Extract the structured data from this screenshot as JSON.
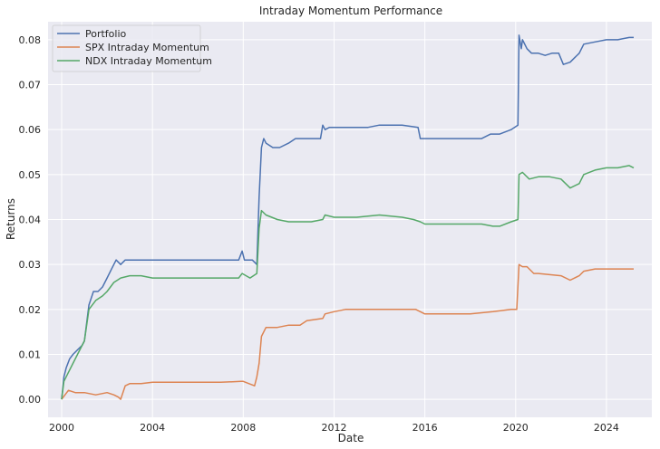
{
  "chart_data": {
    "type": "line",
    "title": "Intraday Momentum Performance",
    "xlabel": "Date",
    "ylabel": "Returns",
    "xlim": [
      1999.4,
      2026.0
    ],
    "ylim": [
      -0.004,
      0.084
    ],
    "x_ticks": [
      2000,
      2004,
      2008,
      2012,
      2016,
      2020,
      2024
    ],
    "x_tick_labels": [
      "2000",
      "2004",
      "2008",
      "2012",
      "2016",
      "2020",
      "2024"
    ],
    "y_ticks": [
      0.0,
      0.01,
      0.02,
      0.03,
      0.04,
      0.05,
      0.06,
      0.07,
      0.08
    ],
    "y_tick_labels": [
      "0.00",
      "0.01",
      "0.02",
      "0.03",
      "0.04",
      "0.05",
      "0.06",
      "0.07",
      "0.08"
    ],
    "grid": true,
    "legend_position": "top-left",
    "series": [
      {
        "name": "Portfolio",
        "color": "#4c72b0",
        "x": [
          2000.0,
          2000.1,
          2000.2,
          2000.35,
          2000.5,
          2000.7,
          2000.9,
          2001.0,
          2001.2,
          2001.4,
          2001.6,
          2001.8,
          2002.0,
          2002.2,
          2002.4,
          2002.6,
          2002.8,
          2003.0,
          2003.3,
          2003.6,
          2004.0,
          2005.0,
          2006.0,
          2007.0,
          2007.8,
          2007.95,
          2008.05,
          2008.4,
          2008.6,
          2008.7,
          2008.8,
          2008.9,
          2009.0,
          2009.3,
          2009.6,
          2010.0,
          2010.3,
          2010.6,
          2011.0,
          2011.4,
          2011.5,
          2011.6,
          2011.8,
          2012.0,
          2012.5,
          2013.0,
          2013.5,
          2014.0,
          2015.0,
          2015.7,
          2015.8,
          2016.0,
          2016.5,
          2017.0,
          2018.0,
          2018.5,
          2018.9,
          2019.3,
          2019.8,
          2020.1,
          2020.15,
          2020.25,
          2020.3,
          2020.5,
          2020.7,
          2021.0,
          2021.3,
          2021.6,
          2021.9,
          2022.1,
          2022.4,
          2022.6,
          2022.8,
          2023.0,
          2023.5,
          2024.0,
          2024.5,
          2025.0,
          2025.2
        ],
        "values": [
          0.0,
          0.005,
          0.007,
          0.009,
          0.01,
          0.011,
          0.012,
          0.013,
          0.021,
          0.024,
          0.024,
          0.025,
          0.027,
          0.029,
          0.031,
          0.03,
          0.031,
          0.031,
          0.031,
          0.031,
          0.031,
          0.031,
          0.031,
          0.031,
          0.031,
          0.033,
          0.031,
          0.031,
          0.03,
          0.045,
          0.056,
          0.058,
          0.057,
          0.056,
          0.056,
          0.057,
          0.058,
          0.058,
          0.058,
          0.058,
          0.061,
          0.06,
          0.0605,
          0.0605,
          0.0605,
          0.0605,
          0.0605,
          0.061,
          0.061,
          0.0605,
          0.058,
          0.058,
          0.058,
          0.058,
          0.058,
          0.058,
          0.059,
          0.059,
          0.06,
          0.061,
          0.081,
          0.078,
          0.08,
          0.078,
          0.077,
          0.077,
          0.0765,
          0.077,
          0.077,
          0.0745,
          0.075,
          0.076,
          0.077,
          0.079,
          0.0795,
          0.08,
          0.08,
          0.0805,
          0.0805
        ]
      },
      {
        "name": "SPX Intraday Momentum",
        "color": "#dd8452",
        "x": [
          2000.0,
          2000.3,
          2000.6,
          2001.0,
          2001.5,
          2002.0,
          2002.3,
          2002.5,
          2002.6,
          2002.8,
          2003.0,
          2003.5,
          2004.0,
          2005.0,
          2006.0,
          2007.0,
          2007.9,
          2008.0,
          2008.5,
          2008.6,
          2008.7,
          2008.8,
          2009.0,
          2009.5,
          2010.0,
          2010.5,
          2010.8,
          2011.5,
          2011.6,
          2012.0,
          2012.5,
          2013.0,
          2014.0,
          2015.0,
          2015.6,
          2015.8,
          2016.0,
          2017.0,
          2018.0,
          2019.0,
          2019.8,
          2020.05,
          2020.15,
          2020.3,
          2020.5,
          2020.8,
          2021.0,
          2022.0,
          2022.4,
          2022.8,
          2023.0,
          2023.5,
          2024.0,
          2024.5,
          2025.0,
          2025.2
        ],
        "values": [
          0.0,
          0.002,
          0.0015,
          0.0015,
          0.001,
          0.0015,
          0.001,
          0.0005,
          0.0,
          0.003,
          0.0035,
          0.0035,
          0.0038,
          0.0038,
          0.0038,
          0.0038,
          0.004,
          0.004,
          0.003,
          0.005,
          0.008,
          0.014,
          0.016,
          0.016,
          0.0165,
          0.0165,
          0.0175,
          0.018,
          0.019,
          0.0195,
          0.02,
          0.02,
          0.02,
          0.02,
          0.02,
          0.0195,
          0.019,
          0.019,
          0.019,
          0.0195,
          0.02,
          0.02,
          0.03,
          0.0295,
          0.0295,
          0.028,
          0.028,
          0.0275,
          0.0265,
          0.0275,
          0.0285,
          0.029,
          0.029,
          0.029,
          0.029,
          0.029
        ]
      },
      {
        "name": "NDX Intraday Momentum",
        "color": "#55a868",
        "x": [
          2000.0,
          2000.1,
          2000.3,
          2000.5,
          2000.7,
          2000.9,
          2001.0,
          2001.2,
          2001.5,
          2001.8,
          2002.0,
          2002.3,
          2002.6,
          2003.0,
          2003.5,
          2004.0,
          2005.0,
          2006.0,
          2007.0,
          2007.8,
          2007.95,
          2008.3,
          2008.6,
          2008.7,
          2008.8,
          2009.0,
          2009.5,
          2010.0,
          2010.5,
          2011.0,
          2011.5,
          2011.6,
          2012.0,
          2013.0,
          2014.0,
          2015.0,
          2015.5,
          2015.8,
          2016.0,
          2017.0,
          2018.0,
          2018.5,
          2019.0,
          2019.3,
          2019.8,
          2020.1,
          2020.15,
          2020.3,
          2020.6,
          2021.0,
          2021.5,
          2022.0,
          2022.4,
          2022.8,
          2023.0,
          2023.5,
          2024.0,
          2024.5,
          2025.0,
          2025.2
        ],
        "values": [
          0.0,
          0.004,
          0.006,
          0.008,
          0.01,
          0.012,
          0.013,
          0.02,
          0.022,
          0.023,
          0.024,
          0.026,
          0.027,
          0.0275,
          0.0275,
          0.027,
          0.027,
          0.027,
          0.027,
          0.027,
          0.028,
          0.027,
          0.028,
          0.038,
          0.042,
          0.041,
          0.04,
          0.0395,
          0.0395,
          0.0395,
          0.04,
          0.041,
          0.0405,
          0.0405,
          0.041,
          0.0405,
          0.04,
          0.0395,
          0.039,
          0.039,
          0.039,
          0.039,
          0.0385,
          0.0385,
          0.0395,
          0.04,
          0.05,
          0.0505,
          0.049,
          0.0495,
          0.0495,
          0.049,
          0.047,
          0.048,
          0.05,
          0.051,
          0.0515,
          0.0515,
          0.052,
          0.0515
        ]
      }
    ]
  }
}
